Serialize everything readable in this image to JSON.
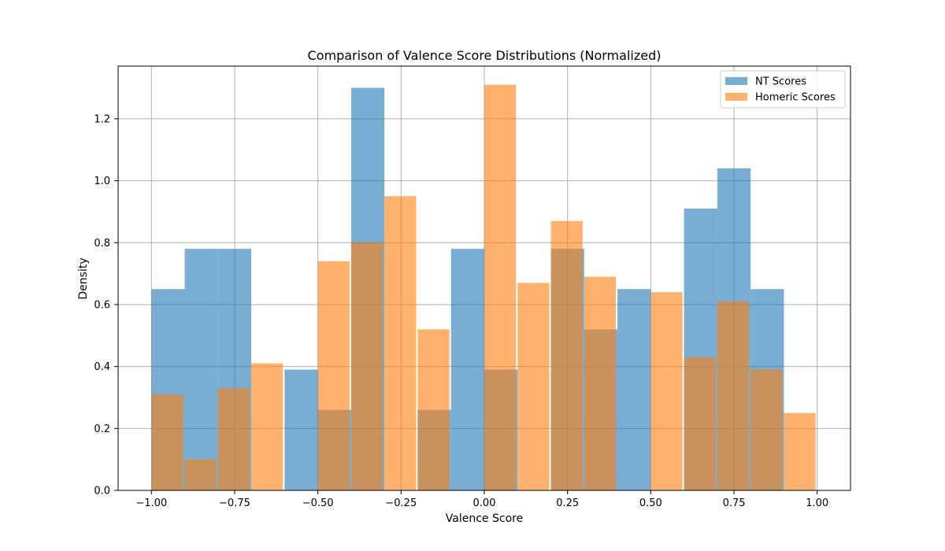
{
  "chart_data": {
    "type": "bar",
    "subtype": "overlaid-histogram",
    "title": "Comparison of Valence Score Distributions (Normalized)",
    "xlabel": "Valence Score",
    "ylabel": "Density",
    "xlim": [
      -1.1,
      1.1
    ],
    "ylim": [
      0,
      1.37
    ],
    "xticks": [
      -1.0,
      -0.75,
      -0.5,
      -0.25,
      0.0,
      0.25,
      0.5,
      0.75,
      1.0
    ],
    "xtick_labels": [
      "−1.00",
      "−0.75",
      "−0.50",
      "−0.25",
      "0.00",
      "0.25",
      "0.50",
      "0.75",
      "1.00"
    ],
    "yticks": [
      0.0,
      0.2,
      0.4,
      0.6,
      0.8,
      1.0,
      1.2
    ],
    "ytick_labels": [
      "0.0",
      "0.2",
      "0.4",
      "0.6",
      "0.8",
      "1.0",
      "1.2"
    ],
    "grid": true,
    "legend_position": "top-right",
    "series": [
      {
        "name": "NT Scores",
        "color": "#1f77b4",
        "opacity": 0.6,
        "edges": [
          -1.0,
          -0.9,
          -0.8,
          -0.7,
          -0.6,
          -0.5,
          -0.4,
          -0.3,
          -0.2,
          -0.1,
          0.0,
          0.1,
          0.2,
          0.3,
          0.4,
          0.5,
          0.6,
          0.7,
          0.8,
          0.9
        ],
        "values": [
          0.65,
          0.78,
          0.78,
          0.0,
          0.39,
          0.26,
          1.3,
          0.0,
          0.26,
          0.78,
          0.39,
          0.0,
          0.78,
          0.52,
          0.65,
          0.0,
          0.91,
          1.04,
          0.65
        ]
      },
      {
        "name": "Homeric Scores",
        "color": "#ff7f0e",
        "opacity": 0.6,
        "edges": [
          -1.0,
          -0.9,
          -0.8,
          -0.7,
          -0.6,
          -0.5,
          -0.4,
          -0.3,
          -0.2,
          -0.1,
          0.0,
          0.1,
          0.2,
          0.3,
          0.4,
          0.5,
          0.6,
          0.7,
          0.8,
          0.9,
          1.0
        ],
        "values": [
          0.31,
          0.1,
          0.33,
          0.41,
          0.0,
          0.74,
          0.8,
          0.95,
          0.52,
          0.0,
          1.31,
          0.67,
          0.87,
          0.69,
          0.0,
          0.64,
          0.43,
          0.61,
          0.39,
          0.25
        ]
      }
    ]
  }
}
